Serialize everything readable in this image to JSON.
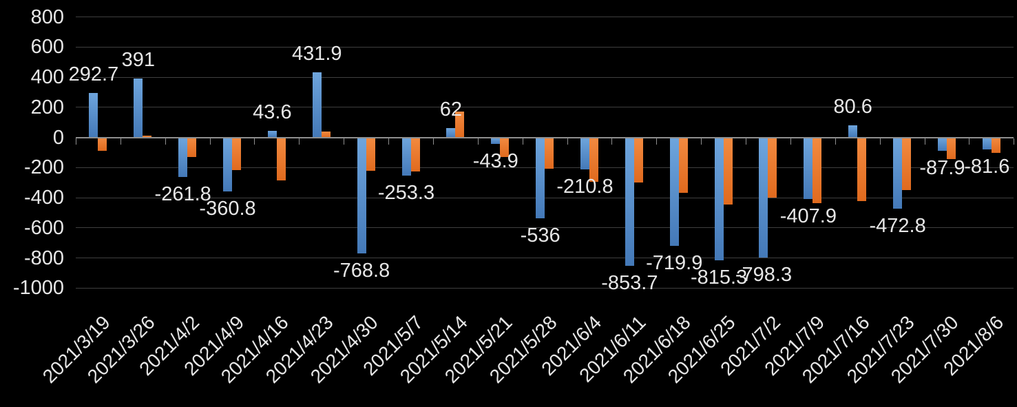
{
  "chart_data": {
    "type": "bar",
    "title": "",
    "legend": "none",
    "grid": true,
    "categories": [
      "2021/3/19",
      "2021/3/26",
      "2021/4/2",
      "2021/4/9",
      "2021/4/16",
      "2021/4/23",
      "2021/4/30",
      "2021/5/7",
      "2021/5/14",
      "2021/5/21",
      "2021/5/28",
      "2021/6/4",
      "2021/6/11",
      "2021/6/18",
      "2021/6/25",
      "2021/7/2",
      "2021/7/9",
      "2021/7/16",
      "2021/7/23",
      "2021/7/30",
      "2021/8/6"
    ],
    "series": [
      {
        "name": "blue",
        "color_top": "#6ea5dd",
        "color_bottom": "#4479b8",
        "values": [
          292.7,
          391,
          -261.8,
          -360.8,
          43.6,
          431.9,
          -768.8,
          -253.3,
          62,
          -43.9,
          -536,
          -210.8,
          -853.7,
          -719.9,
          -815.3,
          -798.3,
          -407.9,
          80.6,
          -472.8,
          -87.9,
          -81.6
        ],
        "data_labels": [
          "292.7",
          "391",
          "-261.8",
          "-360.8",
          "43.6",
          "431.9",
          "-768.8",
          "-253.3",
          "62",
          "-43.9",
          "-536",
          "-210.8",
          "-853.7",
          "-719.9",
          "-815.3",
          "-798.3",
          "-407.9",
          "80.6",
          "-472.8",
          "-87.9",
          "-81.6"
        ]
      },
      {
        "name": "orange",
        "color_top": "#f28a40",
        "color_bottom": "#e06a1e",
        "values": [
          -90,
          10,
          -130,
          -215,
          -285,
          40,
          -220,
          -225,
          170,
          -130,
          -210,
          -295,
          -300,
          -370,
          -445,
          -400,
          -435,
          -425,
          -350,
          -145,
          -105
        ],
        "data_labels": []
      }
    ],
    "y_axis": {
      "min": -1000,
      "max": 800,
      "tick_labels": [
        "800",
        "600",
        "400",
        "200",
        "0",
        "-200",
        "-400",
        "-600",
        "-800",
        "-1000"
      ],
      "tick_values": [
        800,
        600,
        400,
        200,
        0,
        -200,
        -400,
        -600,
        -800,
        -1000
      ]
    },
    "colors": {
      "background": "#000000",
      "gridline": "#3f3f3f",
      "axis_line": "#8f8f8f",
      "text": "#e6e6e6"
    }
  }
}
